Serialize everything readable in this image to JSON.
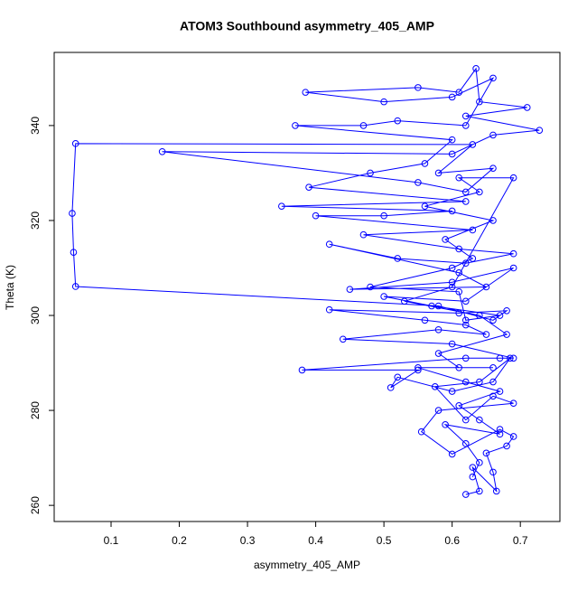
{
  "chart_data": {
    "type": "line",
    "title": "ATOM3 Southbound asymmetry_405_AMP",
    "x_label": "asymmetry_405_AMP",
    "y_label": "Theta (K)",
    "color": "#0000ff",
    "markers": true,
    "xlim": [
      0.0166,
      0.758
    ],
    "ylim": [
      256.6,
      355.4
    ],
    "xticks": [
      0.1,
      0.2,
      0.3,
      0.4,
      0.5,
      0.6,
      0.7
    ],
    "yticks": [
      260,
      280,
      300,
      320,
      340
    ],
    "x": [
      0.62,
      0.64,
      0.63,
      0.665,
      0.66,
      0.65,
      0.68,
      0.69,
      0.67,
      0.6,
      0.555,
      0.58,
      0.69,
      0.66,
      0.62,
      0.575,
      0.64,
      0.685,
      0.66,
      0.6,
      0.52,
      0.51,
      0.55,
      0.38,
      0.62,
      0.67,
      0.69,
      0.6,
      0.44,
      0.58,
      0.65,
      0.62,
      0.56,
      0.42,
      0.61,
      0.68,
      0.66,
      0.58,
      0.048,
      0.045,
      0.043,
      0.048,
      0.63,
      0.58,
      0.66,
      0.62,
      0.55,
      0.175,
      0.6,
      0.66,
      0.728,
      0.62,
      0.71,
      0.64,
      0.635,
      0.61,
      0.55,
      0.385,
      0.5,
      0.6,
      0.66,
      0.62,
      0.52,
      0.47,
      0.37,
      0.6,
      0.56,
      0.48,
      0.39,
      0.62,
      0.35,
      0.6,
      0.5,
      0.4,
      0.63,
      0.47,
      0.61,
      0.69,
      0.62,
      0.52,
      0.42,
      0.61,
      0.65,
      0.45,
      0.6,
      0.69,
      0.62,
      0.5,
      0.57,
      0.67,
      0.62,
      0.61,
      0.48,
      0.6,
      0.63,
      0.59,
      0.66,
      0.56,
      0.64,
      0.61,
      0.69,
      0.6,
      0.53,
      0.64,
      0.68,
      0.58,
      0.61,
      0.66,
      0.55,
      0.62,
      0.67,
      0.61,
      0.64,
      0.67,
      0.59,
      0.62,
      0.64,
      0.63
    ],
    "values": [
      262.3,
      263,
      268,
      263,
      267,
      271,
      272.5,
      274.5,
      276,
      270.8,
      275.5,
      280,
      281.5,
      283,
      278,
      285,
      286,
      291,
      286,
      284,
      287,
      284.8,
      288.5,
      288.5,
      291,
      291,
      291,
      294,
      295,
      297,
      296,
      298,
      299,
      301.2,
      300.5,
      301,
      299,
      302,
      306.1,
      313.3,
      321.5,
      336.2,
      336,
      330,
      331,
      326,
      328,
      334.5,
      334,
      338,
      339,
      342,
      343.8,
      345,
      352,
      347,
      348,
      347,
      345,
      346,
      350,
      340,
      341,
      340,
      340,
      337,
      332,
      330,
      327,
      324,
      323,
      322,
      321,
      321,
      318,
      317,
      314,
      313,
      311,
      312,
      315,
      309,
      306,
      305.5,
      307,
      310,
      303,
      304,
      302,
      300,
      299,
      305,
      306,
      310,
      312,
      316,
      320,
      323,
      326,
      329,
      329,
      306,
      303,
      300,
      296,
      292,
      289,
      289,
      289,
      286,
      284,
      281,
      278,
      275,
      277,
      273,
      269,
      266
    ]
  }
}
